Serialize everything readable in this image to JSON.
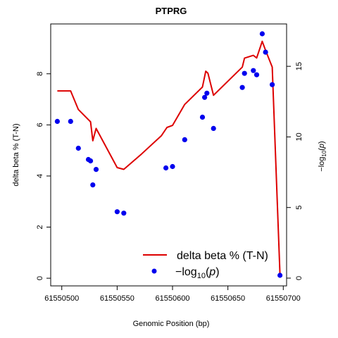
{
  "chart_data": {
    "type": "line",
    "title": "PTPRG",
    "xlabel": "Genomic Position (bp)",
    "ylabel": "delta beta % (T-N)",
    "y2label": "-log10(p)",
    "xlim": [
      61550490,
      61550703
    ],
    "ylim": [
      -0.3,
      9.95
    ],
    "y2lim": [
      -0.55,
      18.0
    ],
    "x_ticks": [
      61550500,
      61550550,
      61550600,
      61550650,
      61550700
    ],
    "y_ticks": [
      0,
      2,
      4,
      6,
      8
    ],
    "y2_ticks": [
      0,
      5,
      10,
      15
    ],
    "grid": false,
    "legend_position": "bottom-right",
    "series": [
      {
        "name": "delta beta % (T-N)",
        "axis": "left",
        "color": "#dd0000",
        "marker": "line",
        "points": [
          [
            61550496,
            7.33
          ],
          [
            61550508,
            7.33
          ],
          [
            61550515,
            6.6
          ],
          [
            61550526,
            6.12
          ],
          [
            61550528,
            5.38
          ],
          [
            61550531,
            5.86
          ],
          [
            61550550,
            4.33
          ],
          [
            61550556,
            4.26
          ],
          [
            61550572,
            4.86
          ],
          [
            61550590,
            5.58
          ],
          [
            61550595,
            5.9
          ],
          [
            61550600,
            5.98
          ],
          [
            61550611,
            6.8
          ],
          [
            61550627,
            7.48
          ],
          [
            61550630,
            8.1
          ],
          [
            61550632,
            8.02
          ],
          [
            61550637,
            7.16
          ],
          [
            61550663,
            8.26
          ],
          [
            61550665,
            8.61
          ],
          [
            61550673,
            8.72
          ],
          [
            61550676,
            8.62
          ],
          [
            61550681,
            9.27
          ],
          [
            61550684,
            8.92
          ],
          [
            61550690,
            8.26
          ],
          [
            61550697,
            0.15
          ]
        ]
      },
      {
        "name": "-log10(p)",
        "axis": "right",
        "color": "#0000ee",
        "marker": "circle",
        "points": [
          [
            61550496,
            11.1
          ],
          [
            61550508,
            11.1
          ],
          [
            61550515,
            9.2
          ],
          [
            61550524,
            8.4
          ],
          [
            61550526,
            8.3
          ],
          [
            61550528,
            6.6
          ],
          [
            61550531,
            7.7
          ],
          [
            61550550,
            4.7
          ],
          [
            61550556,
            4.6
          ],
          [
            61550594,
            7.8
          ],
          [
            61550600,
            7.9
          ],
          [
            61550611,
            9.8
          ],
          [
            61550627,
            11.4
          ],
          [
            61550629,
            12.8
          ],
          [
            61550631,
            13.1
          ],
          [
            61550637,
            10.6
          ],
          [
            61550663,
            13.5
          ],
          [
            61550665,
            14.5
          ],
          [
            61550673,
            14.7
          ],
          [
            61550676,
            14.4
          ],
          [
            61550681,
            17.3
          ],
          [
            61550684,
            16.0
          ],
          [
            61550690,
            13.7
          ],
          [
            61550697,
            0.2
          ]
        ]
      }
    ]
  }
}
